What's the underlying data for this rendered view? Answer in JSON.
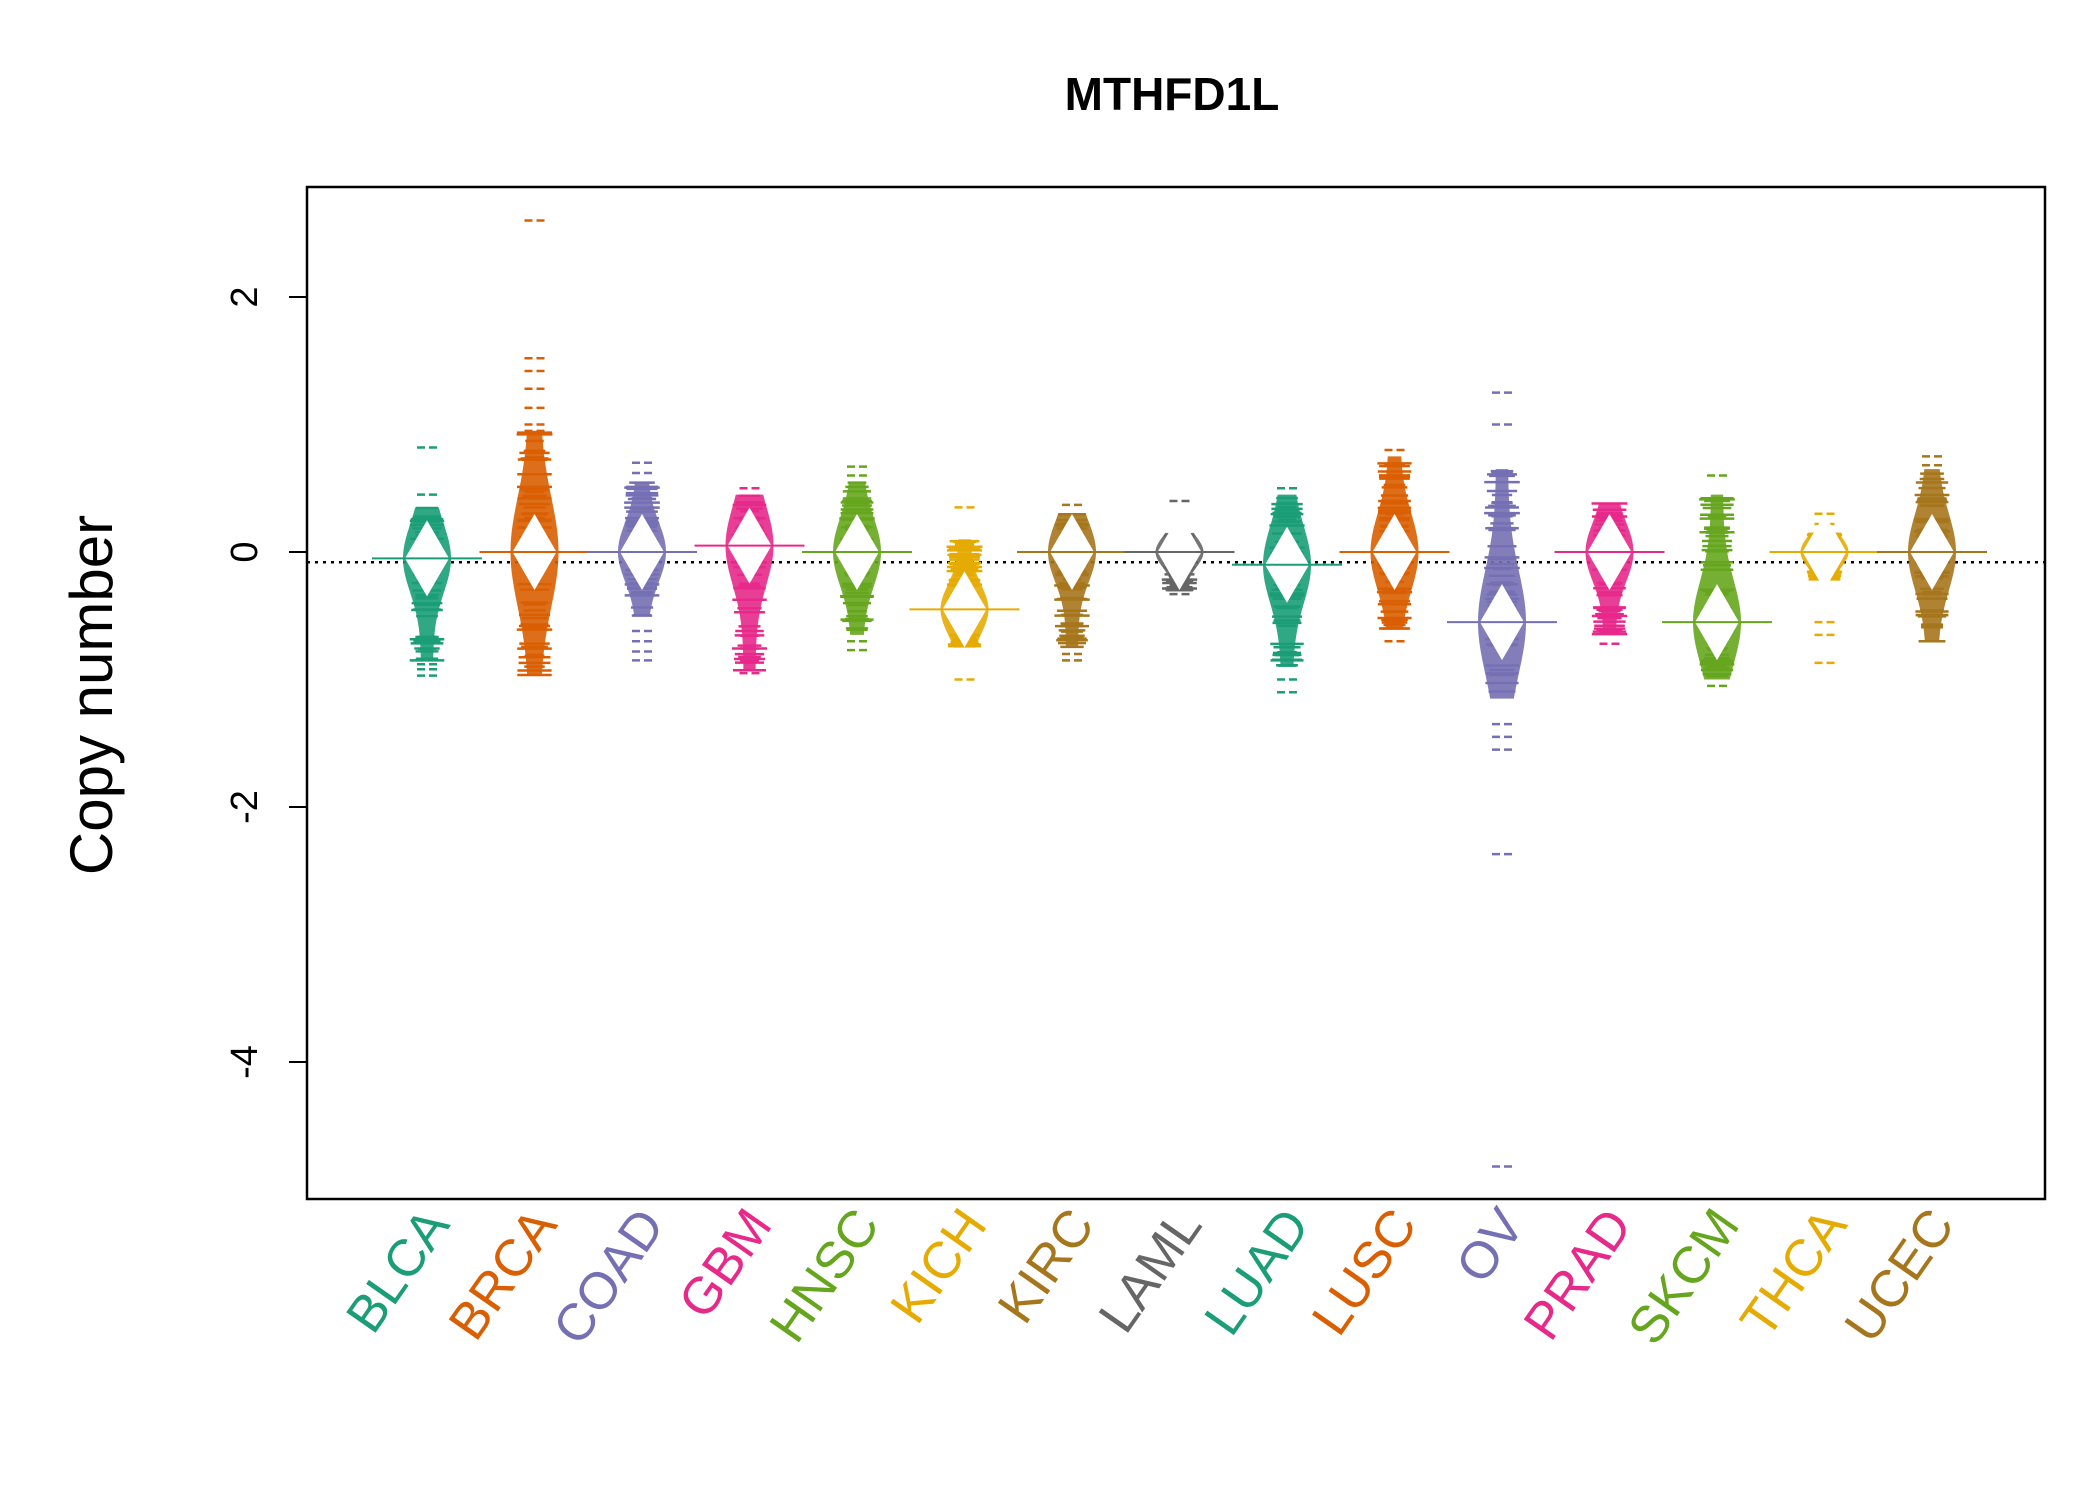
{
  "chart_data": {
    "type": "beanplot",
    "title": "MTHFD1L",
    "xlabel": "",
    "ylabel": "Copy number",
    "ylim": [
      -5.2,
      2.9
    ],
    "yticks": [
      2,
      0,
      -2,
      -4
    ],
    "ytick_labels": [
      "2",
      "0",
      "-2",
      "-4"
    ],
    "reference_line": -0.08,
    "grid": false,
    "legend": "none",
    "categories": [
      "BLCA",
      "BRCA",
      "COAD",
      "GBM",
      "HNSC",
      "KICH",
      "KIRC",
      "LAML",
      "LUAD",
      "LUSC",
      "OV",
      "PRAD",
      "SKCM",
      "THCA",
      "UCEC"
    ],
    "colors": [
      "#1B9E77",
      "#D95F02",
      "#7570B3",
      "#E7298A",
      "#66A61E",
      "#E6AB02",
      "#A6761D",
      "#666666",
      "#1B9E77",
      "#D95F02",
      "#7570B3",
      "#E7298A",
      "#66A61E",
      "#E6AB02",
      "#A6761D"
    ],
    "series": [
      {
        "category": "BLCA",
        "mean": -0.05,
        "min": -0.97,
        "max": 0.82,
        "bulk_low": -0.85,
        "bulk_high": 0.35,
        "outliers": [
          0.82,
          0.45,
          -0.88,
          -0.92,
          -0.97
        ]
      },
      {
        "category": "BRCA",
        "mean": 0.0,
        "min": -1.03,
        "max": 2.6,
        "bulk_low": -0.97,
        "bulk_high": 0.95,
        "outliers": [
          2.6,
          1.52,
          1.42,
          1.28,
          1.13,
          1.0,
          0.95
        ]
      },
      {
        "category": "COAD",
        "mean": 0.0,
        "min": -0.85,
        "max": 0.7,
        "bulk_low": -0.5,
        "bulk_high": 0.55,
        "outliers": [
          0.7,
          0.62,
          -0.62,
          -0.7,
          -0.78,
          -0.85
        ]
      },
      {
        "category": "GBM",
        "mean": 0.05,
        "min": -0.95,
        "max": 0.5,
        "bulk_low": -0.93,
        "bulk_high": 0.45,
        "outliers": [
          0.5,
          -0.95
        ]
      },
      {
        "category": "HNSC",
        "mean": 0.0,
        "min": -0.77,
        "max": 0.67,
        "bulk_low": -0.65,
        "bulk_high": 0.55,
        "outliers": [
          0.67,
          0.6,
          -0.7,
          -0.77
        ]
      },
      {
        "category": "KICH",
        "mean": -0.45,
        "min": -1.0,
        "max": 0.35,
        "bulk_low": -0.75,
        "bulk_high": 0.1,
        "outliers": [
          0.35,
          -0.6,
          -0.7,
          -1.0
        ]
      },
      {
        "category": "KIRC",
        "mean": 0.0,
        "min": -0.85,
        "max": 0.37,
        "bulk_low": -0.75,
        "bulk_high": 0.3,
        "outliers": [
          0.37,
          -0.8,
          -0.85
        ]
      },
      {
        "category": "LAML",
        "mean": 0.0,
        "min": -0.33,
        "max": 0.4,
        "bulk_low": -0.3,
        "bulk_high": 0.15,
        "outliers": [
          0.4,
          -0.33
        ]
      },
      {
        "category": "LUAD",
        "mean": -0.1,
        "min": -1.1,
        "max": 0.5,
        "bulk_low": -0.9,
        "bulk_high": 0.45,
        "outliers": [
          0.5,
          -1.0,
          -1.1
        ]
      },
      {
        "category": "LUSC",
        "mean": 0.0,
        "min": -0.7,
        "max": 0.8,
        "bulk_low": -0.6,
        "bulk_high": 0.75,
        "outliers": [
          0.8,
          -0.7
        ]
      },
      {
        "category": "OV",
        "mean": -0.55,
        "min": -4.82,
        "max": 1.25,
        "bulk_low": -1.15,
        "bulk_high": 0.65,
        "outliers": [
          1.25,
          1.0,
          -1.35,
          -1.45,
          -1.55,
          -2.37,
          -4.82
        ]
      },
      {
        "category": "PRAD",
        "mean": 0.0,
        "min": -0.72,
        "max": 0.38,
        "bulk_low": -0.65,
        "bulk_high": 0.38,
        "outliers": [
          -0.72
        ]
      },
      {
        "category": "SKCM",
        "mean": -0.55,
        "min": -1.05,
        "max": 0.6,
        "bulk_low": -1.0,
        "bulk_high": 0.45,
        "outliers": [
          0.6,
          -1.05
        ]
      },
      {
        "category": "THCA",
        "mean": 0.0,
        "min": -0.87,
        "max": 0.3,
        "bulk_low": -0.22,
        "bulk_high": 0.15,
        "outliers": [
          0.3,
          0.22,
          -0.55,
          -0.65,
          -0.87
        ]
      },
      {
        "category": "UCEC",
        "mean": 0.0,
        "min": -0.72,
        "max": 0.75,
        "bulk_low": -0.7,
        "bulk_high": 0.65,
        "outliers": [
          0.75,
          0.68
        ]
      }
    ]
  }
}
